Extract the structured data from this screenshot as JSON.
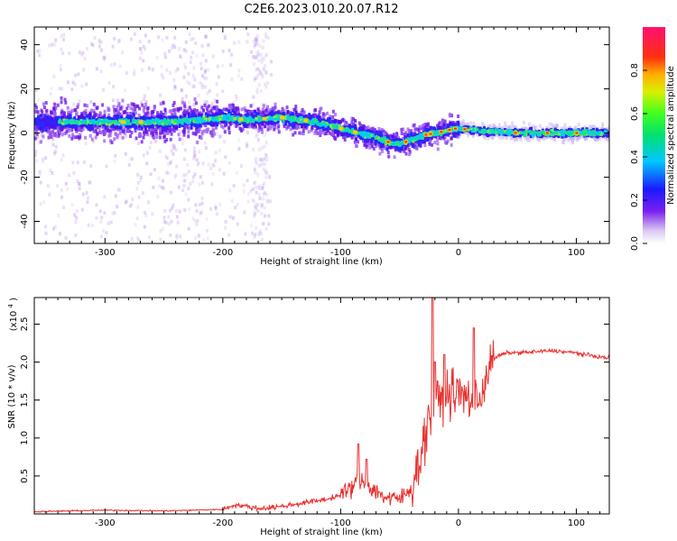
{
  "title": "C2E6.2023.010.20.07.R12",
  "colors": {
    "snr_line": "#e8302e",
    "background": "#ffffff",
    "axis": "#000000"
  },
  "chart_data": [
    {
      "type": "heatmap",
      "title": "C2E6.2023.010.20.07.R12",
      "xlabel": "Height of straight line (km)",
      "ylabel": "Frequency (Hz)",
      "xlim": [
        -360,
        128
      ],
      "ylim": [
        -50,
        48
      ],
      "xticks": [
        -300,
        -200,
        -100,
        0,
        100
      ],
      "xtick_labels": [
        "-300",
        "-200",
        "-100",
        "0",
        "100"
      ],
      "yticks": [
        -40,
        -20,
        0,
        20,
        40
      ],
      "ytick_labels": [
        "-40",
        "-20",
        "0",
        "20",
        "40"
      ],
      "colorbar": {
        "label": "Normalized spectral amplitude",
        "range": [
          0,
          1
        ],
        "ticks": [
          0,
          0.2,
          0.4,
          0.6,
          0.8
        ],
        "tick_labels": [
          "0.0",
          "0.2",
          "0.4",
          "0.6",
          "0.8"
        ],
        "colormap": "rainbow (purple-blue-cyan-green-yellow-red-magenta)"
      },
      "ridge": {
        "description": "frequency ridge of the strongest spectral energy vs height",
        "x": [
          -360,
          -300,
          -250,
          -215,
          -200,
          -180,
          -150,
          -120,
          -100,
          -85,
          -70,
          -60,
          -50,
          -40,
          -30,
          -20,
          -10,
          -5,
          0,
          20,
          50,
          80,
          100,
          128
        ],
        "y": [
          5,
          5,
          5,
          6,
          7,
          6,
          7,
          5,
          2,
          0,
          -2,
          -4,
          -5,
          -3,
          -1,
          0,
          1,
          2,
          2,
          1,
          0,
          0,
          0,
          0
        ]
      }
    },
    {
      "type": "line",
      "xlabel": "Height of straight line (km)",
      "ylabel": "SNR (10 * v/v)",
      "y_scale_label": "(x10",
      "y_scale_exponent": "4",
      "y_scale_close": ")",
      "xlim": [
        -360,
        128
      ],
      "ylim": [
        0,
        2.85
      ],
      "xticks": [
        -300,
        -200,
        -100,
        0,
        100
      ],
      "xtick_labels": [
        "-300",
        "-200",
        "-100",
        "0",
        "100"
      ],
      "yticks": [
        0.5,
        1.0,
        1.5,
        2.0,
        2.5
      ],
      "ytick_labels": [
        "0.5",
        "1.0",
        "1.5",
        "2.0",
        "2.5"
      ],
      "series": [
        {
          "name": "SNR",
          "x": [
            -360,
            -300,
            -250,
            -200,
            -190,
            -180,
            -170,
            -150,
            -130,
            -110,
            -100,
            -90,
            -85,
            -80,
            -70,
            -60,
            -50,
            -45,
            -40,
            -35,
            -30,
            -25,
            -22,
            -20,
            -15,
            -10,
            -5,
            0,
            5,
            10,
            15,
            20,
            25,
            30,
            40,
            60,
            80,
            100,
            110,
            128
          ],
          "y": [
            0.03,
            0.05,
            0.04,
            0.06,
            0.12,
            0.1,
            0.07,
            0.1,
            0.15,
            0.2,
            0.25,
            0.35,
            0.45,
            0.4,
            0.3,
            0.2,
            0.2,
            0.25,
            0.35,
            0.6,
            0.9,
            1.3,
            1.35,
            1.45,
            1.5,
            1.55,
            1.6,
            1.6,
            1.55,
            1.5,
            1.45,
            1.6,
            1.9,
            2.05,
            2.12,
            2.13,
            2.15,
            2.12,
            2.09,
            2.05
          ]
        }
      ],
      "spikes": {
        "x": [
          -85,
          -78,
          -22,
          -20,
          -12,
          13
        ],
        "y": [
          0.92,
          0.72,
          2.9,
          2.0,
          2.1,
          2.45
        ]
      }
    }
  ]
}
